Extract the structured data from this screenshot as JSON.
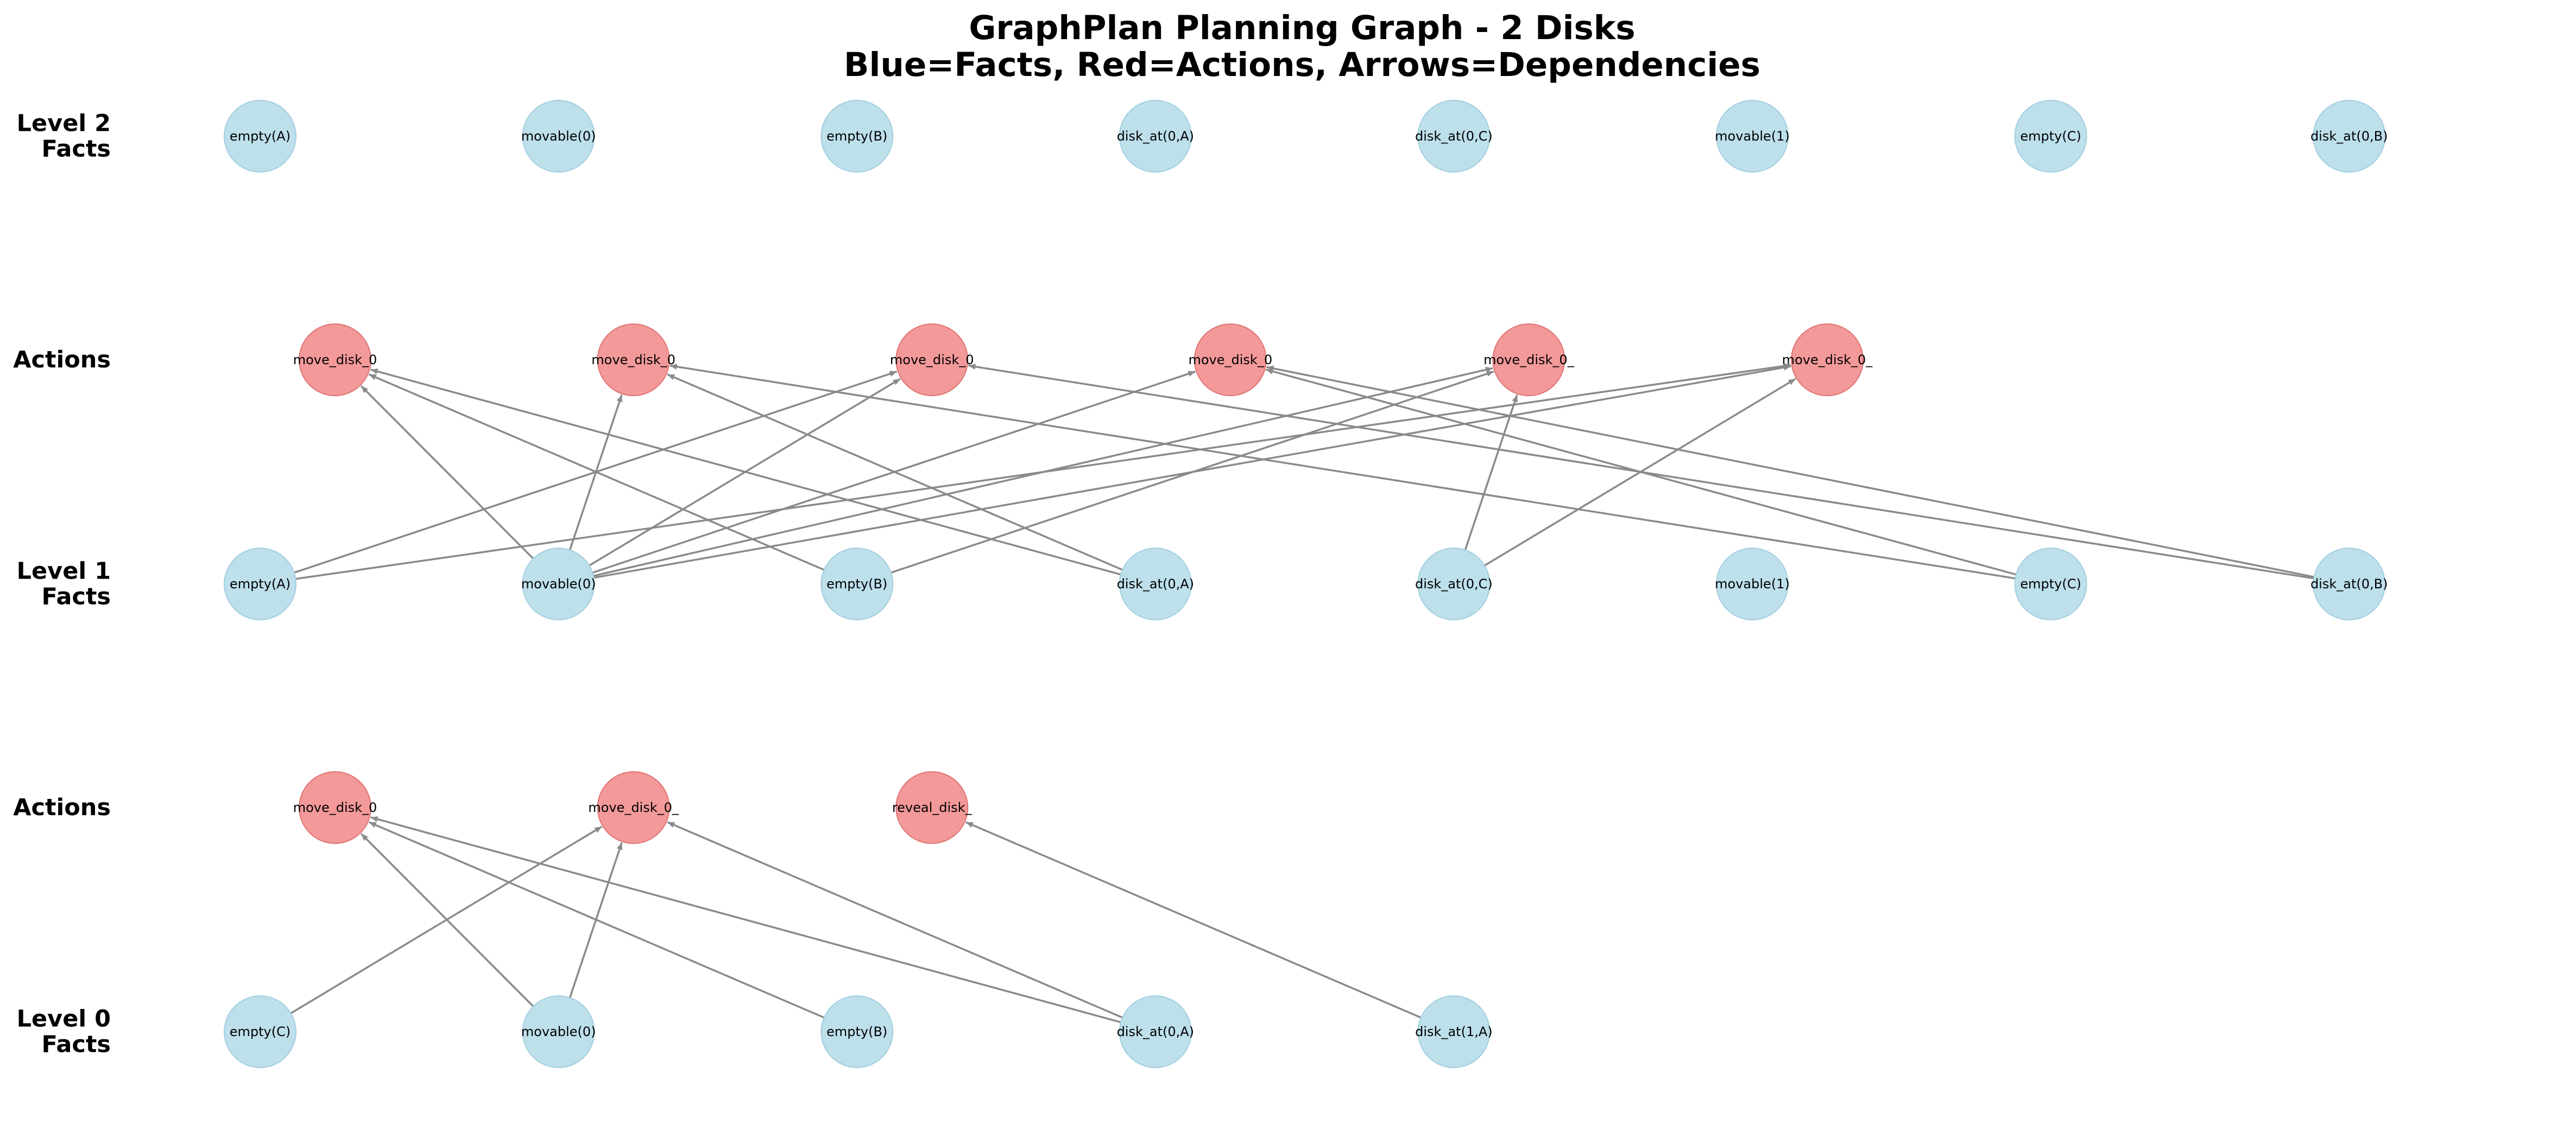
{
  "title": {
    "line1": "GraphPlan Planning Graph - 2 Disks",
    "line2": "Blue=Facts, Red=Actions, Arrows=Dependencies"
  },
  "colors": {
    "fact": "#add8e6",
    "action": "#f08080",
    "edge": "#8a8a8a"
  },
  "levels": [
    {
      "label_lines": [
        "Level 2",
        "Facts"
      ],
      "kind": "fact",
      "nodes": [
        "empty(A)",
        "movable(0)",
        "empty(B)",
        "disk_at(0,A)",
        "disk_at(0,C)",
        "movable(1)",
        "empty(C)",
        "disk_at(0,B)"
      ]
    },
    {
      "label_lines": [
        "Actions"
      ],
      "kind": "action",
      "nodes": [
        "move_disk_0",
        "move_disk_0",
        "move_disk_0",
        "move_disk_0",
        "move_disk_0_",
        "move_disk_0_"
      ]
    },
    {
      "label_lines": [
        "Level 1",
        "Facts"
      ],
      "kind": "fact",
      "nodes": [
        "empty(A)",
        "movable(0)",
        "empty(B)",
        "disk_at(0,A)",
        "disk_at(0,C)",
        "movable(1)",
        "empty(C)",
        "disk_at(0,B)"
      ]
    },
    {
      "label_lines": [
        "Actions"
      ],
      "kind": "action",
      "nodes": [
        "move_disk_0",
        "move_disk_0_",
        "reveal_disk_"
      ]
    },
    {
      "label_lines": [
        "Level 0",
        "Facts"
      ],
      "kind": "fact",
      "nodes": [
        "empty(C)",
        "movable(0)",
        "empty(B)",
        "disk_at(0,A)",
        "disk_at(1,A)"
      ]
    }
  ],
  "edges": [
    {
      "from": [
        2,
        0
      ],
      "to": [
        1,
        2
      ]
    },
    {
      "from": [
        2,
        0
      ],
      "to": [
        1,
        5
      ]
    },
    {
      "from": [
        2,
        1
      ],
      "to": [
        1,
        0
      ]
    },
    {
      "from": [
        2,
        1
      ],
      "to": [
        1,
        1
      ]
    },
    {
      "from": [
        2,
        1
      ],
      "to": [
        1,
        2
      ]
    },
    {
      "from": [
        2,
        1
      ],
      "to": [
        1,
        3
      ]
    },
    {
      "from": [
        2,
        1
      ],
      "to": [
        1,
        4
      ]
    },
    {
      "from": [
        2,
        1
      ],
      "to": [
        1,
        5
      ]
    },
    {
      "from": [
        2,
        2
      ],
      "to": [
        1,
        0
      ]
    },
    {
      "from": [
        2,
        2
      ],
      "to": [
        1,
        4
      ]
    },
    {
      "from": [
        2,
        3
      ],
      "to": [
        1,
        0
      ]
    },
    {
      "from": [
        2,
        3
      ],
      "to": [
        1,
        1
      ]
    },
    {
      "from": [
        2,
        4
      ],
      "to": [
        1,
        4
      ]
    },
    {
      "from": [
        2,
        4
      ],
      "to": [
        1,
        5
      ]
    },
    {
      "from": [
        2,
        6
      ],
      "to": [
        1,
        1
      ]
    },
    {
      "from": [
        2,
        6
      ],
      "to": [
        1,
        3
      ]
    },
    {
      "from": [
        2,
        7
      ],
      "to": [
        1,
        2
      ]
    },
    {
      "from": [
        2,
        7
      ],
      "to": [
        1,
        3
      ]
    },
    {
      "from": [
        4,
        0
      ],
      "to": [
        3,
        1
      ]
    },
    {
      "from": [
        4,
        1
      ],
      "to": [
        3,
        0
      ]
    },
    {
      "from": [
        4,
        1
      ],
      "to": [
        3,
        1
      ]
    },
    {
      "from": [
        4,
        2
      ],
      "to": [
        3,
        0
      ]
    },
    {
      "from": [
        4,
        3
      ],
      "to": [
        3,
        0
      ]
    },
    {
      "from": [
        4,
        3
      ],
      "to": [
        3,
        1
      ]
    },
    {
      "from": [
        4,
        4
      ],
      "to": [
        3,
        2
      ]
    }
  ]
}
